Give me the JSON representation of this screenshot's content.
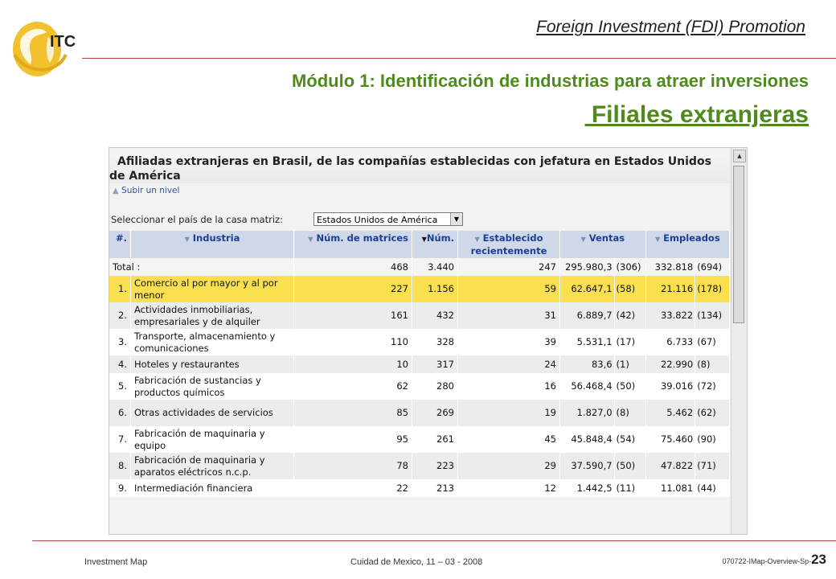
{
  "slide": {
    "logo_text": "ITC",
    "header": "Foreign Investment (FDI) Promotion",
    "module_title": "Módulo 1: Identificación de industrias para atraer inversiones",
    "subtitle": " Filiales extranjeras"
  },
  "app": {
    "title_line1": "Afiliadas extranjeras en Brasil, de las compañías establecidas con jefatura en Estados Unidos",
    "title_line2": "de América",
    "up_link": "Subir un nivel",
    "country_label": "Seleccionar el país de la casa matriz:",
    "country_value": "Estados Unidos de América",
    "columns": {
      "idx": "#.",
      "industria": "Industria",
      "matrices": "Núm. de matrices",
      "num": "Núm.",
      "establecido": "Establecido recientemente",
      "ventas": "Ventas",
      "empleados": "Empleados"
    },
    "total": {
      "label": "Total :",
      "matrices": "468",
      "num": "3.440",
      "establecido": "247",
      "ventas": "295.980,3",
      "ventas_n": "(306)",
      "empleados": "332.818",
      "empleados_n": "(694)"
    },
    "rows": [
      {
        "idx": "1.",
        "industria": "Comercio al por mayor y al por menor",
        "matrices": "227",
        "num": "1.156",
        "establecido": "59",
        "ventas": "62.647,1",
        "ventas_n": "(58)",
        "empleados": "21.116",
        "empleados_n": "(178)"
      },
      {
        "idx": "2.",
        "industria": "Actividades inmobiliarias, empresariales y de alquiler",
        "matrices": "161",
        "num": "432",
        "establecido": "31",
        "ventas": "6.889,7",
        "ventas_n": "(42)",
        "empleados": "33.822",
        "empleados_n": "(134)"
      },
      {
        "idx": "3.",
        "industria": "Transporte, almacenamiento y comunicaciones",
        "matrices": "110",
        "num": "328",
        "establecido": "39",
        "ventas": "5.531,1",
        "ventas_n": "(17)",
        "empleados": "6.733",
        "empleados_n": "(67)"
      },
      {
        "idx": "4.",
        "industria": "Hoteles y restaurantes",
        "matrices": "10",
        "num": "317",
        "establecido": "24",
        "ventas": "83,6",
        "ventas_n": "(1)",
        "empleados": "22.990",
        "empleados_n": "(8)"
      },
      {
        "idx": "5.",
        "industria": "Fabricación de sustancias y productos químicos",
        "matrices": "62",
        "num": "280",
        "establecido": "16",
        "ventas": "56.468,4",
        "ventas_n": "(50)",
        "empleados": "39.016",
        "empleados_n": "(72)"
      },
      {
        "idx": "6.",
        "industria": "Otras actividades de servicios",
        "matrices": "85",
        "num": "269",
        "establecido": "19",
        "ventas": "1.827,0",
        "ventas_n": "(8)",
        "empleados": "5.462",
        "empleados_n": "(62)"
      },
      {
        "idx": "7.",
        "industria": "Fabricación de maquinaria y equipo",
        "matrices": "95",
        "num": "261",
        "establecido": "45",
        "ventas": "45.848,4",
        "ventas_n": "(54)",
        "empleados": "75.460",
        "empleados_n": "(90)"
      },
      {
        "idx": "8.",
        "industria": "Fabricación de maquinaria y aparatos eléctricos n.c.p.",
        "matrices": "78",
        "num": "223",
        "establecido": "29",
        "ventas": "37.590,7",
        "ventas_n": "(50)",
        "empleados": "47.822",
        "empleados_n": "(71)"
      },
      {
        "idx": "9.",
        "industria": "Intermediación financiera",
        "matrices": "22",
        "num": "213",
        "establecido": "12",
        "ventas": "1.442,5",
        "ventas_n": "(11)",
        "empleados": "11.081",
        "empleados_n": "(44)"
      }
    ]
  },
  "footer": {
    "left": "Investment Map",
    "center": "Cuidad de Mexico, 11 – 03 - 2008",
    "right_small": "070722-IMap-Overview-Sp-",
    "page": "23"
  }
}
